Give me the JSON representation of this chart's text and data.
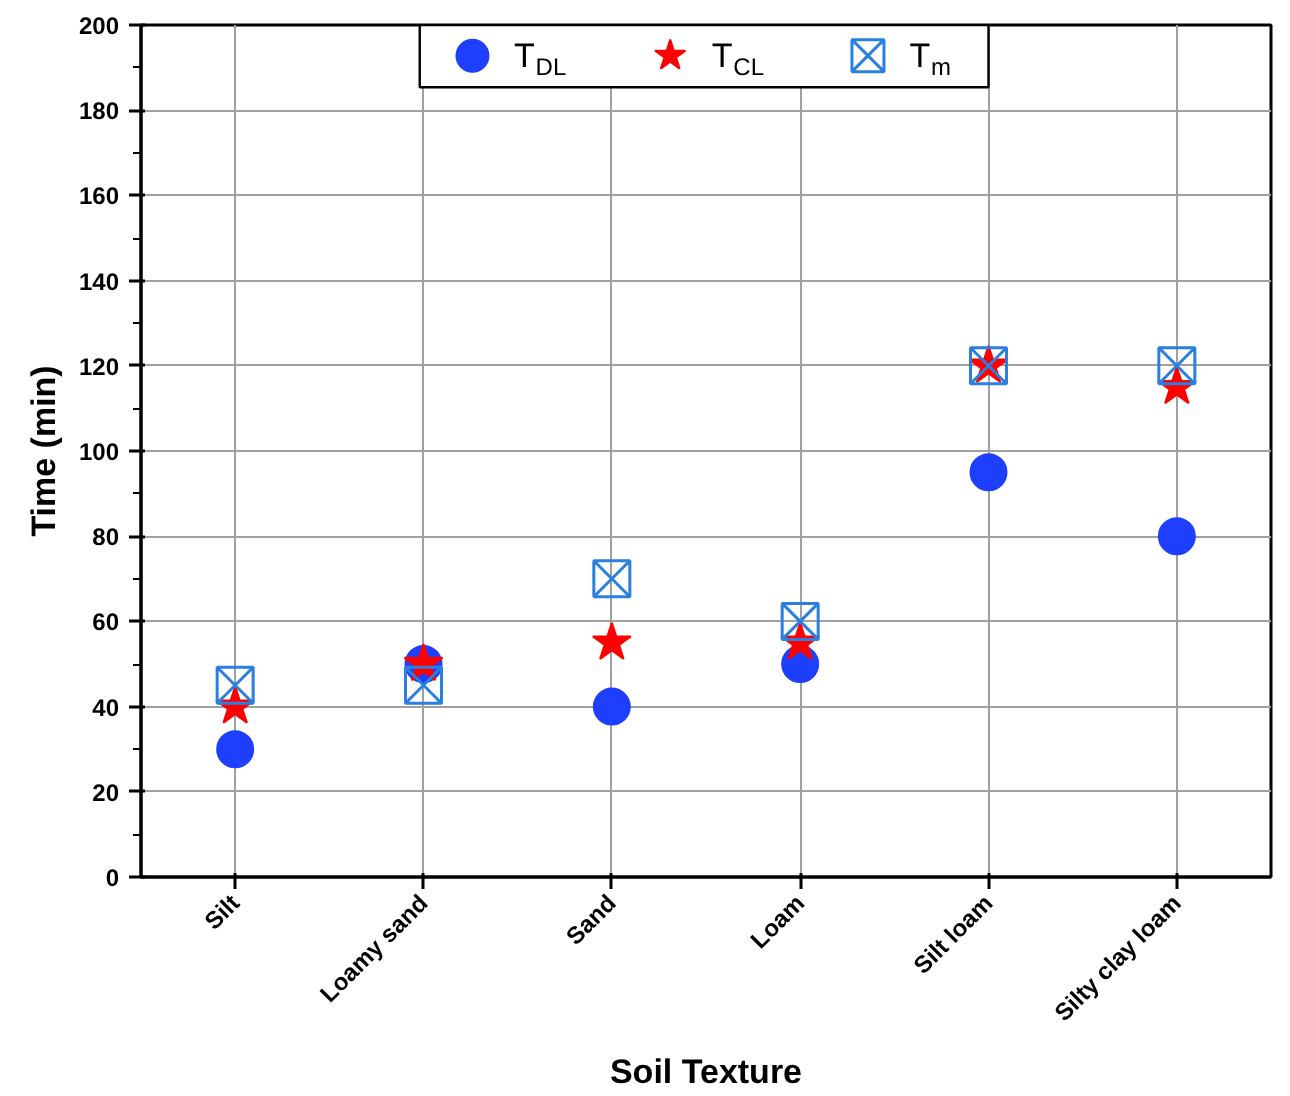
{
  "chart_data": {
    "type": "scatter",
    "xlabel": "Soil Texture",
    "ylabel": "Time (min)",
    "categories": [
      "Silt",
      "Loamy sand",
      "Sand",
      "Loam",
      "Silt loam",
      "Silty clay loam"
    ],
    "series": [
      {
        "name": "T$_{DL}$",
        "color": "#1f3fff",
        "marker": "circle",
        "values": [
          30,
          50,
          40,
          50,
          95,
          80
        ]
      },
      {
        "name": "T$_{CL}$",
        "color": "#ff0000",
        "marker": "star",
        "values": [
          40,
          50,
          55,
          55,
          120,
          115
        ]
      },
      {
        "name": "T$_{m}$",
        "color": "#2a7fe0",
        "marker": "cross",
        "values": [
          45,
          45,
          70,
          60,
          120,
          120
        ]
      }
    ],
    "ylim": [
      0,
      200
    ],
    "yticks": [
      0,
      20,
      40,
      60,
      80,
      100,
      120,
      140,
      160,
      180,
      200
    ],
    "grid": true,
    "legend": "top"
  }
}
